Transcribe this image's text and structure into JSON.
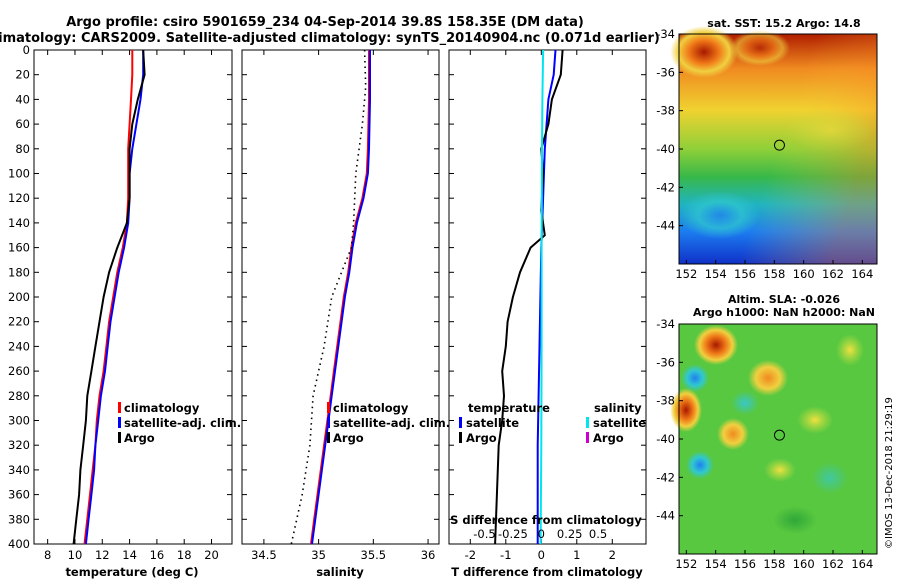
{
  "figure": {
    "title_line1": "Argo profile: csiro 5901659_234 04-Sep-2014 39.8S 158.35E (DM data)",
    "title_line2": "Climatology: CARS2009. Satellite-adjusted climatology: synTS_20140904.nc (0.071d earlier)",
    "copyright": "©IMOS 13-Dec-2018 21:29:19"
  },
  "chart_data": [
    {
      "id": "temperature",
      "type": "line",
      "xlabel": "temperature (deg C)",
      "xlim": [
        7,
        21.5
      ],
      "xticks": [
        8,
        10,
        12,
        14,
        16,
        18,
        20
      ],
      "ylim": [
        0,
        400
      ],
      "yticks": [
        0,
        20,
        40,
        60,
        80,
        100,
        120,
        140,
        160,
        180,
        200,
        220,
        240,
        260,
        280,
        300,
        320,
        340,
        360,
        380,
        400
      ],
      "legend": [
        "climatology",
        "satellite-adj. clim.",
        "Argo"
      ],
      "series": [
        {
          "name": "climatology",
          "color": "#ff0000",
          "points": [
            [
              14.2,
              0
            ],
            [
              14.2,
              20
            ],
            [
              14.1,
              40
            ],
            [
              14.0,
              60
            ],
            [
              13.9,
              80
            ],
            [
              13.9,
              100
            ],
            [
              13.9,
              120
            ],
            [
              13.8,
              140
            ],
            [
              13.5,
              160
            ],
            [
              13.1,
              180
            ],
            [
              12.8,
              200
            ],
            [
              12.5,
              220
            ],
            [
              12.3,
              240
            ],
            [
              12.1,
              260
            ],
            [
              11.8,
              280
            ],
            [
              11.6,
              300
            ],
            [
              11.5,
              320
            ],
            [
              11.3,
              340
            ],
            [
              11.1,
              360
            ],
            [
              10.9,
              380
            ],
            [
              10.7,
              400
            ]
          ]
        },
        {
          "name": "satellite-adj. clim.",
          "color": "#0000ff",
          "points": [
            [
              15.0,
              0
            ],
            [
              15.0,
              20
            ],
            [
              14.8,
              40
            ],
            [
              14.5,
              60
            ],
            [
              14.2,
              80
            ],
            [
              14.0,
              100
            ],
            [
              14.0,
              120
            ],
            [
              13.9,
              140
            ],
            [
              13.6,
              160
            ],
            [
              13.2,
              180
            ],
            [
              12.9,
              200
            ],
            [
              12.6,
              220
            ],
            [
              12.4,
              240
            ],
            [
              12.2,
              260
            ],
            [
              11.9,
              280
            ],
            [
              11.7,
              300
            ],
            [
              11.5,
              320
            ],
            [
              11.4,
              340
            ],
            [
              11.2,
              360
            ],
            [
              11.0,
              380
            ],
            [
              10.8,
              400
            ]
          ]
        },
        {
          "name": "Argo",
          "color": "#000000",
          "points": [
            [
              15.0,
              0
            ],
            [
              15.1,
              20
            ],
            [
              14.6,
              40
            ],
            [
              14.2,
              60
            ],
            [
              14.0,
              80
            ],
            [
              14.0,
              100
            ],
            [
              14.0,
              120
            ],
            [
              13.8,
              140
            ],
            [
              13.1,
              160
            ],
            [
              12.5,
              180
            ],
            [
              12.1,
              200
            ],
            [
              11.8,
              220
            ],
            [
              11.5,
              240
            ],
            [
              11.2,
              260
            ],
            [
              10.9,
              280
            ],
            [
              10.8,
              300
            ],
            [
              10.6,
              320
            ],
            [
              10.4,
              340
            ],
            [
              10.3,
              360
            ],
            [
              10.1,
              380
            ],
            [
              9.9,
              400
            ]
          ]
        }
      ]
    },
    {
      "id": "salinity",
      "type": "line",
      "xlabel": "salinity",
      "xlim": [
        34.3,
        36.1
      ],
      "xticks": [
        34.5,
        35,
        35.5,
        36
      ],
      "ylim": [
        0,
        400
      ],
      "legend": [
        "climatology",
        "satellite-adj. clim.",
        "Argo"
      ],
      "series": [
        {
          "name": "climatology",
          "color": "#ff0000",
          "points": [
            [
              35.46,
              0
            ],
            [
              35.46,
              40
            ],
            [
              35.45,
              80
            ],
            [
              35.44,
              100
            ],
            [
              35.4,
              120
            ],
            [
              35.34,
              140
            ],
            [
              35.3,
              160
            ],
            [
              35.27,
              180
            ],
            [
              35.23,
              200
            ],
            [
              35.2,
              220
            ],
            [
              35.17,
              240
            ],
            [
              35.14,
              260
            ],
            [
              35.11,
              280
            ],
            [
              35.08,
              300
            ],
            [
              35.05,
              320
            ],
            [
              35.02,
              340
            ],
            [
              34.99,
              360
            ],
            [
              34.96,
              380
            ],
            [
              34.93,
              400
            ]
          ]
        },
        {
          "name": "satellite-adj. clim.",
          "color": "#0000ff",
          "points": [
            [
              35.47,
              0
            ],
            [
              35.47,
              40
            ],
            [
              35.46,
              80
            ],
            [
              35.45,
              100
            ],
            [
              35.41,
              120
            ],
            [
              35.35,
              140
            ],
            [
              35.31,
              160
            ],
            [
              35.28,
              180
            ],
            [
              35.24,
              200
            ],
            [
              35.21,
              220
            ],
            [
              35.18,
              240
            ],
            [
              35.15,
              260
            ],
            [
              35.12,
              280
            ],
            [
              35.09,
              300
            ],
            [
              35.06,
              320
            ],
            [
              35.03,
              340
            ],
            [
              35.0,
              360
            ],
            [
              34.97,
              380
            ],
            [
              34.94,
              400
            ]
          ]
        },
        {
          "name": "Argo",
          "color": "#000000",
          "style": "dotted",
          "points": [
            [
              35.42,
              0
            ],
            [
              35.43,
              30
            ],
            [
              35.4,
              60
            ],
            [
              35.34,
              100
            ],
            [
              35.32,
              140
            ],
            [
              35.3,
              160
            ],
            [
              35.12,
              200
            ],
            [
              35.05,
              240
            ],
            [
              34.95,
              280
            ],
            [
              34.92,
              320
            ],
            [
              34.85,
              360
            ],
            [
              34.75,
              400
            ]
          ]
        }
      ]
    },
    {
      "id": "difference",
      "type": "line",
      "xlabel": "T difference from climatology",
      "xlabel_top": "S difference from climatology",
      "xlim": [
        -2.6,
        2.95
      ],
      "xticks": [
        -2,
        -1,
        0,
        1,
        2
      ],
      "xticks_top": [
        "-0.5",
        "-0.25",
        "0",
        "0.25",
        "0.5"
      ],
      "ylim": [
        0,
        400
      ],
      "legend_left": {
        "title": "temperature",
        "entries": [
          "satellite",
          "Argo"
        ]
      },
      "legend_right": {
        "title": "salinity",
        "entries": [
          "satellite",
          "Argo"
        ]
      },
      "series": [
        {
          "name": "temperature satellite",
          "color": "#0000ff",
          "points": [
            [
              0.4,
              0
            ],
            [
              0.35,
              20
            ],
            [
              0.2,
              40
            ],
            [
              0.1,
              80
            ],
            [
              0.05,
              120
            ],
            [
              0.0,
              160
            ],
            [
              -0.05,
              240
            ],
            [
              -0.1,
              320
            ],
            [
              -0.1,
              400
            ]
          ]
        },
        {
          "name": "temperature Argo",
          "color": "#000000",
          "points": [
            [
              0.6,
              0
            ],
            [
              0.55,
              20
            ],
            [
              0.3,
              40
            ],
            [
              0.2,
              60
            ],
            [
              0.0,
              80
            ],
            [
              0.05,
              100
            ],
            [
              0.0,
              130
            ],
            [
              0.1,
              150
            ],
            [
              -0.3,
              160
            ],
            [
              -0.6,
              180
            ],
            [
              -0.8,
              200
            ],
            [
              -0.95,
              220
            ],
            [
              -1.0,
              240
            ],
            [
              -1.1,
              260
            ],
            [
              -1.05,
              280
            ],
            [
              -1.1,
              300
            ],
            [
              -1.2,
              320
            ],
            [
              -1.25,
              360
            ],
            [
              -1.3,
              400
            ]
          ]
        },
        {
          "name": "salinity satellite",
          "color": "#00e5ee",
          "points": [
            [
              0.05,
              0
            ],
            [
              0.03,
              40
            ],
            [
              0.02,
              80
            ],
            [
              0.01,
              160
            ],
            [
              0.01,
              240
            ],
            [
              0.0,
              320
            ],
            [
              -0.02,
              400
            ]
          ]
        }
      ]
    },
    {
      "id": "sst_map",
      "type": "heatmap",
      "title": "sat. SST: 15.2 Argo: 14.8",
      "xticks": [
        152,
        154,
        156,
        158,
        160,
        162,
        164
      ],
      "yticks": [
        -34,
        -36,
        -38,
        -40,
        -42,
        -44
      ],
      "xlim": [
        151.5,
        165
      ],
      "ylim": [
        -46,
        -34
      ],
      "marker": [
        158.35,
        -39.8
      ]
    },
    {
      "id": "sla_map",
      "type": "heatmap",
      "title_line1": "Altim. SLA: -0.026",
      "title_line2": "Argo h1000: NaN h2000: NaN",
      "xticks": [
        152,
        154,
        156,
        158,
        160,
        162,
        164
      ],
      "yticks": [
        -34,
        -36,
        -38,
        -40,
        -42,
        -44
      ],
      "xlim": [
        151.5,
        165
      ],
      "ylim": [
        -46,
        -34
      ],
      "marker": [
        158.35,
        -39.8
      ]
    }
  ]
}
